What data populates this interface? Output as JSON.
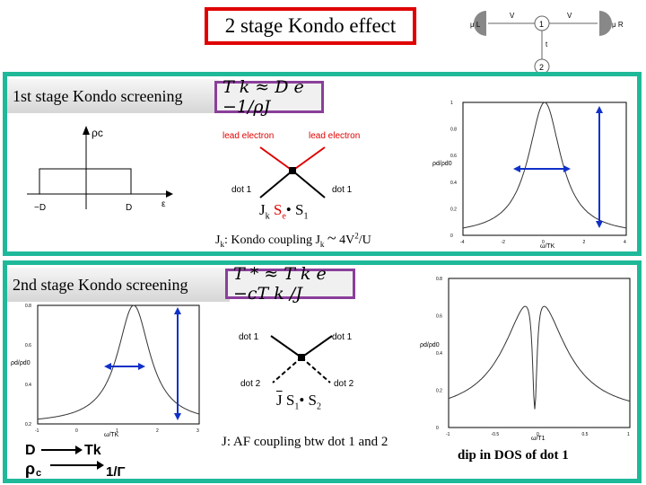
{
  "title": "2 stage Kondo effect",
  "top_diagram": {
    "left_lead": "μ L",
    "right_lead": "μ R",
    "v1": "V",
    "v2": "V",
    "t": "t",
    "dot1": "1",
    "dot2": "2"
  },
  "stage1": {
    "header": "1st stage Kondo screening",
    "formula": "T k ≈ D e −1/ρJ",
    "dos": {
      "ylabel": "ρc",
      "xleft": "−D",
      "xright": "D",
      "xaxis": "ε"
    },
    "diagram": {
      "lead_left": "lead electron",
      "lead_right": "lead electron",
      "dot_left": "dot 1",
      "dot_right": "dot 1",
      "J": "J",
      "Jsub": "k",
      "Se": "S",
      "Sesub": "e",
      "bullet": "•",
      "S1": "S",
      "S1sub": "1"
    },
    "caption": {
      "Jk": "J",
      "k": "k",
      "text": ": Kondo coupling  J",
      "k2": "k",
      "approx": "~",
      "V": "4V",
      "sq": "2",
      "U": "/U"
    },
    "plot": {
      "ylabel": "ρd/ρd0",
      "xlabel": "ω/TK",
      "yticks": [
        "1",
        "0.8",
        "0.6",
        "0.4",
        "0.2",
        "0"
      ],
      "xticks": [
        "-4",
        "-2",
        "0",
        "2",
        "4"
      ]
    }
  },
  "stage2": {
    "header": "2nd stage Kondo screening",
    "formula": "T * ≈ T k e −cT k /J",
    "plot_left": {
      "ylabel": "ρd/ρd0",
      "xlabel": "ω/TK",
      "yticks": [
        "0.8",
        "0.6",
        "0.4",
        "0.2"
      ],
      "xticks": [
        "-1",
        "0",
        "1",
        "2",
        "3"
      ]
    },
    "diagram": {
      "dot1_left": "dot 1",
      "dot1_right": "dot 1",
      "dot2_left": "dot 2",
      "dot2_right": "dot 2",
      "J": "J",
      "S1": "S",
      "S1sub": "1",
      "bullet": "•",
      "S2": "S",
      "S2sub": "2"
    },
    "legend": {
      "D": "D",
      "Tk": "Tk",
      "rho": "ρ",
      "rhosub": "c",
      "gamma": "1/Γ"
    },
    "caption": "J: AF coupling btw dot 1 and 2",
    "plot_right": {
      "ylabel": "ρd/ρd0",
      "xlabel": "ω/T1",
      "yticks": [
        "0.8",
        "0.6",
        "0.4",
        "0.2",
        "0"
      ],
      "xticks": [
        "-1",
        "-0.5",
        "0",
        "0.5",
        "1"
      ]
    },
    "dip_caption": "dip in DOS of dot 1"
  },
  "colors": {
    "title_border": "#e00000",
    "panel_border": "#1fb99a",
    "formula_border": "#8a3f9a",
    "arrow": "#1030c8",
    "lead_red": "#e00000"
  }
}
